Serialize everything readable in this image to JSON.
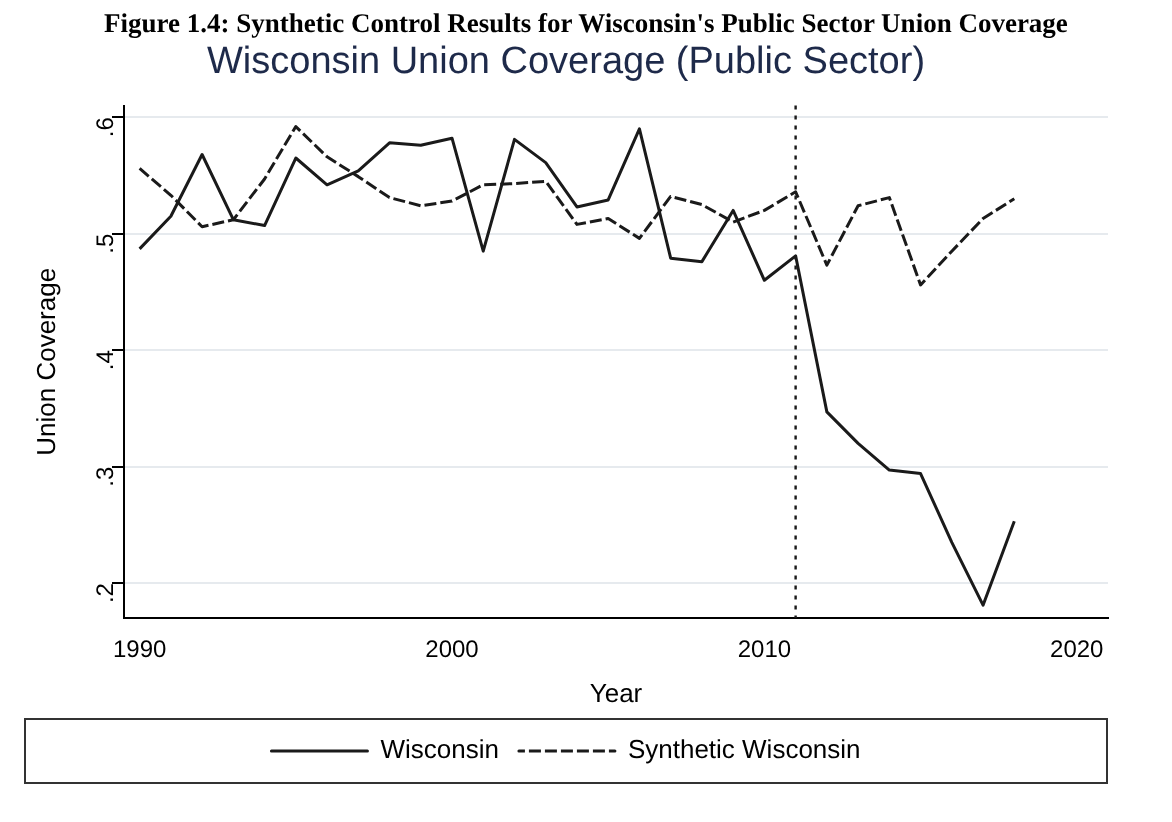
{
  "chart_data": {
    "type": "line",
    "title": "Figure 1.4: Synthetic Control Results for Wisconsin's Public Sector Union Coverage",
    "subtitle": "Wisconsin Union Coverage (Public Sector)",
    "xlabel": "Year",
    "ylabel": "Union Coverage",
    "x": [
      1990,
      1991,
      1992,
      1993,
      1994,
      1995,
      1996,
      1997,
      1998,
      1999,
      2000,
      2001,
      2002,
      2003,
      2004,
      2005,
      2006,
      2007,
      2008,
      2009,
      2010,
      2011,
      2012,
      2013,
      2014,
      2015,
      2016,
      2017,
      2018
    ],
    "series": [
      {
        "name": "Wisconsin",
        "color": "#1a1a1a",
        "line_style": "solid",
        "values": [
          0.487,
          0.515,
          0.568,
          0.512,
          0.507,
          0.565,
          0.542,
          0.554,
          0.578,
          0.576,
          0.582,
          0.485,
          0.581,
          0.561,
          0.523,
          0.529,
          0.59,
          0.479,
          0.476,
          0.52,
          0.46,
          0.481,
          0.347,
          0.32,
          0.297,
          0.294,
          0.235,
          0.181,
          0.253
        ]
      },
      {
        "name": "Synthetic Wisconsin",
        "color": "#1a1a1a",
        "line_style": "dashed",
        "values": [
          0.556,
          0.533,
          0.506,
          0.512,
          0.547,
          0.592,
          0.566,
          0.549,
          0.531,
          0.524,
          0.528,
          0.542,
          0.543,
          0.545,
          0.508,
          0.513,
          0.496,
          0.532,
          0.525,
          0.51,
          0.52,
          0.536,
          0.473,
          0.524,
          0.531,
          0.456,
          0.485,
          0.513,
          0.53
        ]
      }
    ],
    "xlim": [
      1989.5,
      2021
    ],
    "xticks": [
      1990,
      2000,
      2010,
      2020
    ],
    "ylim": [
      0.17,
      0.61
    ],
    "yticks": [
      {
        "value": 0.2,
        "label": ".2"
      },
      {
        "value": 0.3,
        "label": ".3"
      },
      {
        "value": 0.4,
        "label": ".4"
      },
      {
        "value": 0.5,
        "label": ".5"
      },
      {
        "value": 0.6,
        "label": ".6"
      }
    ],
    "ref_lines": [
      {
        "axis": "x",
        "value": 2011,
        "label": null,
        "line_style": "dotted",
        "color": "#1a1a1a"
      }
    ],
    "grid": "y",
    "legend": "bottom",
    "marker": "none"
  }
}
